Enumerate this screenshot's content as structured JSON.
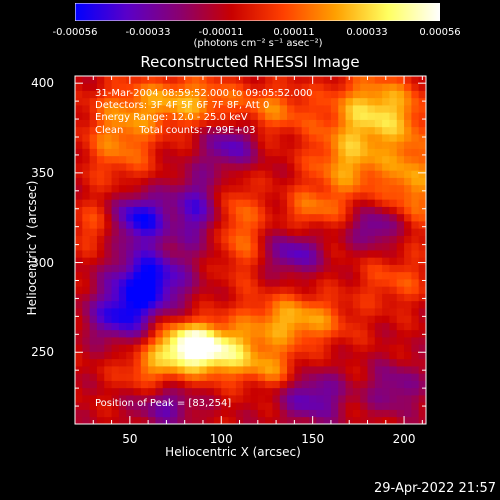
{
  "colorbar": {
    "tick_labels": [
      "-0.00056",
      "-0.00033",
      "-0.00011",
      "0.00011",
      "0.00033",
      "0.00056"
    ],
    "unit_label": "(photons cm⁻² s⁻¹ asec⁻²)",
    "colors": [
      "#0000ff",
      "#5a00c8",
      "#8a0070",
      "#c80000",
      "#ff4000",
      "#ffa000",
      "#ffff60",
      "#ffffff"
    ]
  },
  "info": {
    "time_range": "31-Mar-2004 08:59:52.000 to 09:05:52.000",
    "detectors": "Detectors: 3F 4F 5F 6F 7F 8F, Att 0",
    "energy": "Energy Range: 12.0 - 25.0 keV",
    "clean": "Clean     Total counts: 7.99E+03",
    "peak": "Position of Peak = [83,254]"
  },
  "footer": {
    "timestamp": "29-Apr-2022 21:57"
  },
  "chart_data": {
    "type": "heatmap",
    "title": "Reconstructed RHESSI Image",
    "xlabel": "Heliocentric X (arcsec)",
    "ylabel": "Heliocentric Y (arcsec)",
    "xlim": [
      20,
      212
    ],
    "ylim": [
      210,
      404
    ],
    "x_ticks": [
      50,
      100,
      150,
      200
    ],
    "y_ticks": [
      250,
      300,
      350,
      400
    ],
    "x_tick_labels": [
      "50",
      "100",
      "150",
      "200"
    ],
    "y_tick_labels": [
      "250",
      "300",
      "350",
      "400"
    ],
    "value_range": [
      -0.00056,
      0.00056
    ],
    "peak_position": [
      83,
      254
    ],
    "sources": [
      {
        "x": 83,
        "y": 254,
        "sx": 14,
        "sy": 9,
        "amp": 0.00062
      },
      {
        "x": 105,
        "y": 248,
        "sx": 18,
        "sy": 10,
        "amp": 0.00034
      },
      {
        "x": 140,
        "y": 268,
        "sx": 20,
        "sy": 10,
        "amp": 0.00036
      },
      {
        "x": 60,
        "y": 240,
        "sx": 12,
        "sy": 8,
        "amp": 0.00022
      },
      {
        "x": 130,
        "y": 240,
        "sx": 10,
        "sy": 7,
        "amp": 0.00018
      },
      {
        "x": 185,
        "y": 385,
        "sx": 18,
        "sy": 14,
        "amp": 0.00042
      },
      {
        "x": 170,
        "y": 355,
        "sx": 16,
        "sy": 14,
        "amp": 0.00032
      },
      {
        "x": 205,
        "y": 345,
        "sx": 10,
        "sy": 18,
        "amp": 0.0003
      },
      {
        "x": 80,
        "y": 390,
        "sx": 22,
        "sy": 10,
        "amp": 0.00034
      },
      {
        "x": 45,
        "y": 370,
        "sx": 14,
        "sy": 18,
        "amp": 0.00028
      },
      {
        "x": 130,
        "y": 385,
        "sx": 14,
        "sy": 10,
        "amp": 0.00022
      },
      {
        "x": 110,
        "y": 320,
        "sx": 8,
        "sy": 20,
        "amp": 0.00026
      },
      {
        "x": 150,
        "y": 330,
        "sx": 12,
        "sy": 8,
        "amp": 0.00022
      },
      {
        "x": 195,
        "y": 290,
        "sx": 14,
        "sy": 10,
        "amp": 0.00018
      },
      {
        "x": 30,
        "y": 320,
        "sx": 10,
        "sy": 10,
        "amp": 0.00016
      },
      {
        "x": 55,
        "y": 325,
        "sx": 10,
        "sy": 10,
        "amp": -0.00046
      },
      {
        "x": 60,
        "y": 290,
        "sx": 14,
        "sy": 12,
        "amp": -0.0005
      },
      {
        "x": 45,
        "y": 270,
        "sx": 12,
        "sy": 10,
        "amp": -0.00038
      },
      {
        "x": 85,
        "y": 330,
        "sx": 10,
        "sy": 14,
        "amp": -0.0003
      },
      {
        "x": 140,
        "y": 305,
        "sx": 10,
        "sy": 8,
        "amp": -0.0003
      },
      {
        "x": 185,
        "y": 320,
        "sx": 10,
        "sy": 8,
        "amp": -0.00028
      },
      {
        "x": 105,
        "y": 365,
        "sx": 10,
        "sy": 10,
        "amp": -0.00032
      },
      {
        "x": 150,
        "y": 225,
        "sx": 12,
        "sy": 10,
        "amp": -0.0003
      },
      {
        "x": 70,
        "y": 220,
        "sx": 12,
        "sy": 8,
        "amp": -0.00024
      },
      {
        "x": 195,
        "y": 230,
        "sx": 10,
        "sy": 10,
        "amp": -0.00022
      }
    ]
  }
}
